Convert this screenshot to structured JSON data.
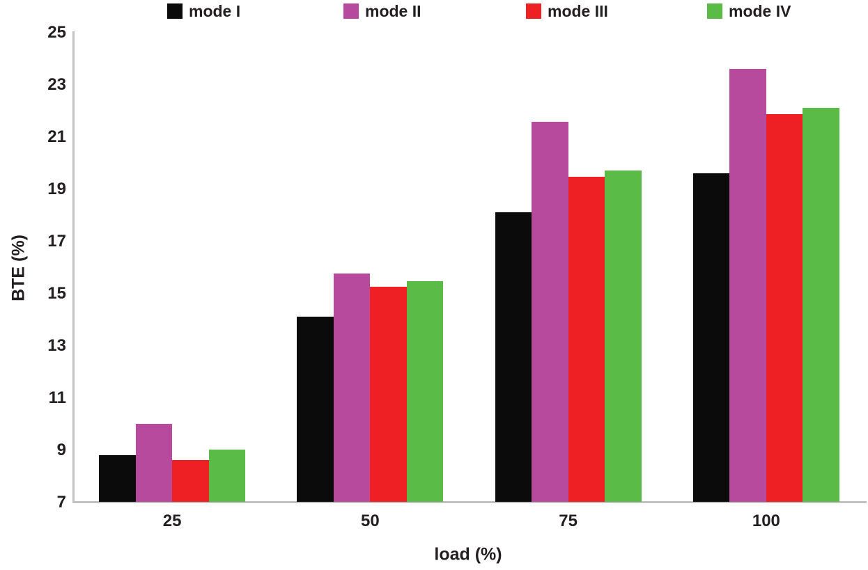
{
  "chart_data": {
    "type": "bar",
    "title": "",
    "categories": [
      "25",
      "50",
      "75",
      "100"
    ],
    "series": [
      {
        "name": "mode I",
        "color": "#0b0b0b",
        "values": [
          8.8,
          14.1,
          18.1,
          19.6
        ]
      },
      {
        "name": "mode II",
        "color": "#b84a9d",
        "values": [
          10.0,
          15.75,
          21.55,
          23.6
        ]
      },
      {
        "name": "mode III",
        "color": "#ee2024",
        "values": [
          8.6,
          15.25,
          19.45,
          21.85
        ]
      },
      {
        "name": "mode IV",
        "color": "#5abb46",
        "values": [
          9.0,
          15.45,
          19.7,
          22.1
        ]
      }
    ],
    "xlabel": "load (%)",
    "ylabel": "BTE  (%)",
    "ylim": [
      7,
      25
    ],
    "yticks": [
      25,
      23,
      21,
      19,
      17,
      15,
      13,
      11,
      9,
      7
    ],
    "grid": false,
    "legend_position": "top",
    "axis_color": "#c2c2c2",
    "text_color": "#231f20"
  }
}
